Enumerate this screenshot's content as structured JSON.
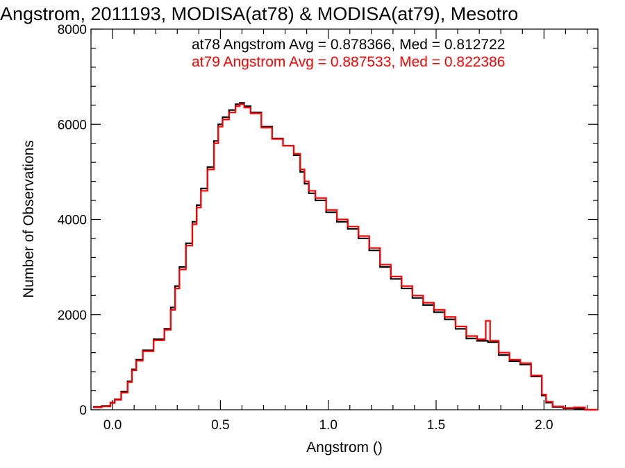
{
  "chart_data": {
    "type": "line",
    "title": "Angstrom, 2011193, MODISA(at78) & MODISA(at79), Mesotro",
    "xlabel": "Angstrom ()",
    "ylabel": "Number of Observations",
    "xlim": [
      -0.1,
      2.25
    ],
    "ylim": [
      0,
      8000
    ],
    "x_ticks": [
      0.0,
      0.5,
      1.0,
      1.5,
      2.0
    ],
    "x_tick_labels": [
      "0.0",
      "0.5",
      "1.0",
      "1.5",
      "2.0"
    ],
    "y_ticks": [
      0,
      2000,
      4000,
      6000,
      8000
    ],
    "y_tick_labels": [
      "0",
      "2000",
      "4000",
      "6000",
      "8000"
    ],
    "grid": false,
    "legend_position": "top-right",
    "annotations": [
      "at78 Angstrom Avg = 0.878366, Med = 0.812722",
      "at79 Angstrom Avg = 0.887533, Med = 0.822386"
    ],
    "series": [
      {
        "color": "#000000",
        "x": [
          -0.08,
          -0.04,
          0.0,
          0.02,
          0.05,
          0.08,
          0.1,
          0.12,
          0.15,
          0.2,
          0.25,
          0.28,
          0.3,
          0.32,
          0.35,
          0.38,
          0.4,
          0.42,
          0.45,
          0.48,
          0.5,
          0.52,
          0.55,
          0.58,
          0.6,
          0.62,
          0.65,
          0.7,
          0.75,
          0.8,
          0.85,
          0.88,
          0.9,
          0.92,
          0.95,
          1.0,
          1.05,
          1.1,
          1.15,
          1.2,
          1.25,
          1.3,
          1.35,
          1.4,
          1.45,
          1.5,
          1.55,
          1.6,
          1.65,
          1.7,
          1.75,
          1.8,
          1.85,
          1.9,
          1.95,
          2.0,
          2.02,
          2.05,
          2.1,
          2.15,
          2.2,
          2.25
        ],
        "y": [
          60,
          80,
          150,
          220,
          380,
          600,
          850,
          1050,
          1250,
          1480,
          1700,
          2150,
          2600,
          3000,
          3500,
          3950,
          4300,
          4650,
          5100,
          5650,
          6000,
          6150,
          6300,
          6420,
          6450,
          6380,
          6250,
          5950,
          5700,
          5550,
          5350,
          5000,
          4750,
          4550,
          4400,
          4150,
          3950,
          3800,
          3600,
          3350,
          3000,
          2750,
          2550,
          2350,
          2200,
          2050,
          1900,
          1700,
          1500,
          1450,
          1420,
          1150,
          1020,
          950,
          700,
          300,
          150,
          60,
          30,
          20,
          0,
          0
        ]
      },
      {
        "color": "#ff0000",
        "x": [
          -0.08,
          -0.04,
          0.0,
          0.02,
          0.05,
          0.08,
          0.1,
          0.12,
          0.15,
          0.2,
          0.25,
          0.28,
          0.3,
          0.32,
          0.35,
          0.38,
          0.4,
          0.42,
          0.45,
          0.48,
          0.5,
          0.52,
          0.55,
          0.58,
          0.6,
          0.62,
          0.65,
          0.7,
          0.75,
          0.8,
          0.85,
          0.88,
          0.9,
          0.92,
          0.95,
          1.0,
          1.05,
          1.1,
          1.15,
          1.2,
          1.25,
          1.3,
          1.35,
          1.4,
          1.45,
          1.5,
          1.55,
          1.6,
          1.65,
          1.7,
          1.74,
          1.76,
          1.8,
          1.85,
          1.9,
          1.95,
          2.0,
          2.02,
          2.05,
          2.1,
          2.15,
          2.2,
          2.25
        ],
        "y": [
          50,
          70,
          140,
          210,
          360,
          580,
          830,
          1030,
          1230,
          1460,
          1680,
          2100,
          2550,
          2950,
          3450,
          3900,
          4250,
          4600,
          5050,
          5600,
          5950,
          6100,
          6250,
          6380,
          6420,
          6350,
          6230,
          5930,
          5690,
          5550,
          5380,
          5050,
          4800,
          4600,
          4450,
          4200,
          4000,
          3850,
          3650,
          3400,
          3050,
          2800,
          2600,
          2400,
          2250,
          2100,
          1950,
          1750,
          1550,
          1480,
          1870,
          1450,
          1200,
          1050,
          980,
          720,
          320,
          170,
          70,
          40,
          50,
          0,
          0
        ]
      }
    ]
  }
}
